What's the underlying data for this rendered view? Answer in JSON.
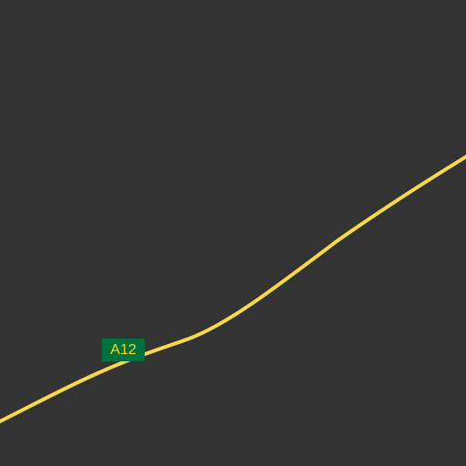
{
  "map": {
    "background_color": "#333333",
    "road": {
      "class": "primary road",
      "color": "#f9d949",
      "shield": {
        "label": "A12",
        "background_color": "#00703c",
        "text_color": "#f9d71c"
      }
    }
  }
}
